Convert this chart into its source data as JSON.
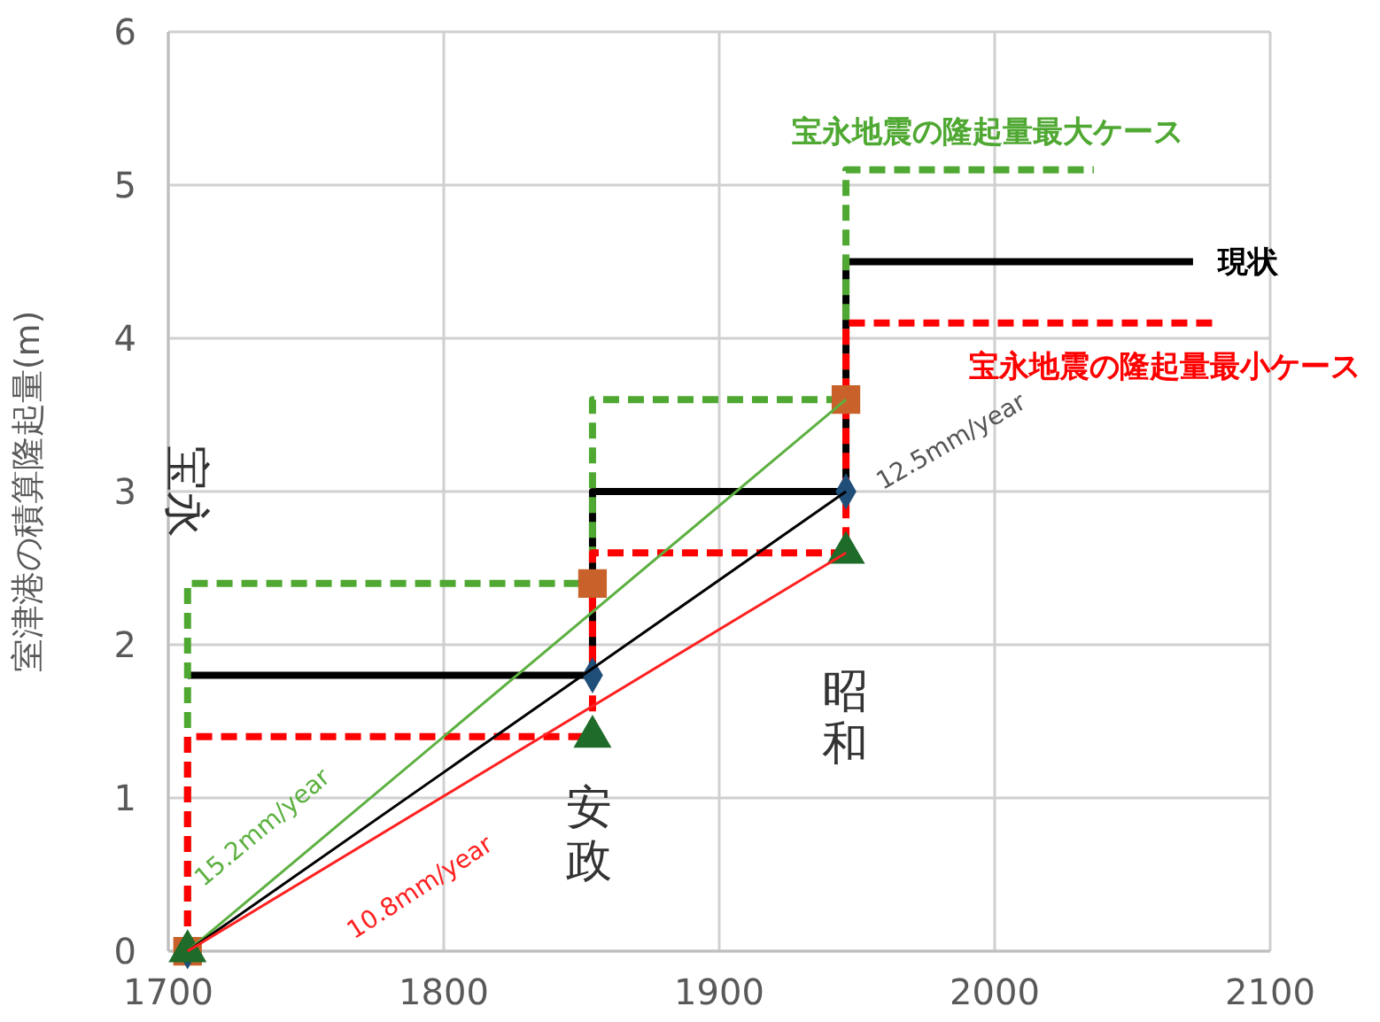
{
  "chart_data": {
    "type": "step",
    "ylabel": "室津港の積算隆起量(m)",
    "xlim": [
      1700,
      2100
    ],
    "ylim": [
      0,
      6
    ],
    "xticks": [
      1700,
      1800,
      1900,
      2000,
      2100
    ],
    "yticks": [
      0,
      1,
      2,
      3,
      4,
      5,
      6
    ],
    "grid": true,
    "series": [
      {
        "name": "現状",
        "color": "#000000",
        "line_style": "solid",
        "x": [
          1707,
          1854,
          1946,
          2072
        ],
        "values": [
          1.8,
          3.0,
          4.5,
          4.5
        ]
      },
      {
        "name": "宝永地震の隆起量最大ケース",
        "color": "#4fa832",
        "line_style": "dashed",
        "x": [
          1707,
          1707,
          1854,
          1946,
          2036
        ],
        "values": [
          0,
          2.4,
          3.6,
          5.1,
          5.1
        ]
      },
      {
        "name": "宝永地震の隆起量最小ケース",
        "color": "#ff0000",
        "line_style": "dashed",
        "x": [
          1707,
          1707,
          1854,
          1946,
          2081
        ],
        "values": [
          0,
          1.4,
          2.6,
          4.1,
          4.1
        ]
      },
      {
        "type": "line",
        "color": "#5cb040",
        "line_style": "solid",
        "x": [
          1707,
          1946
        ],
        "values": [
          0,
          3.6
        ]
      },
      {
        "type": "line",
        "color": "#000000",
        "line_style": "solid",
        "x": [
          1707,
          1946
        ],
        "values": [
          0,
          3.0
        ]
      },
      {
        "type": "line",
        "color": "#ff2020",
        "line_style": "solid",
        "x": [
          1707,
          1946
        ],
        "values": [
          0,
          2.6
        ]
      },
      {
        "type": "scatter",
        "color": "#c8622a",
        "marker": "square",
        "x": [
          1707,
          1854,
          1946
        ],
        "values": [
          0,
          2.4,
          3.6
        ]
      },
      {
        "type": "scatter",
        "color": "#1f4e79",
        "marker": "diamond",
        "x": [
          1707,
          1854,
          1946
        ],
        "values": [
          0,
          1.8,
          3.0
        ]
      },
      {
        "type": "scatter",
        "color": "#1e6b2a",
        "marker": "triangle",
        "x": [
          1707,
          1854,
          1946
        ],
        "values": [
          0,
          1.4,
          2.6
        ]
      }
    ],
    "annotations": [
      "宝永",
      "安政",
      "昭和",
      "15.2mm/year",
      "10.8mm/year",
      "12.5mm/year"
    ]
  }
}
